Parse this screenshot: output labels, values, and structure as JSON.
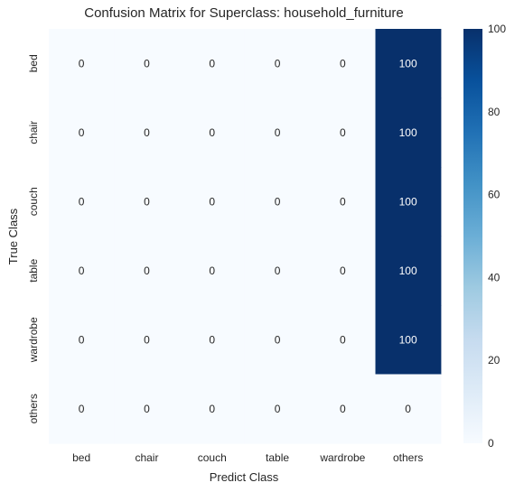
{
  "chart_data": {
    "type": "heatmap",
    "title": "Confusion Matrix for Superclass: household_furniture",
    "xlabel": "Predict Class",
    "ylabel": "True Class",
    "x_categories": [
      "bed",
      "chair",
      "couch",
      "table",
      "wardrobe",
      "others"
    ],
    "y_categories": [
      "bed",
      "chair",
      "couch",
      "table",
      "wardrobe",
      "others"
    ],
    "values": [
      [
        0,
        0,
        0,
        0,
        0,
        100
      ],
      [
        0,
        0,
        0,
        0,
        0,
        100
      ],
      [
        0,
        0,
        0,
        0,
        0,
        100
      ],
      [
        0,
        0,
        0,
        0,
        0,
        100
      ],
      [
        0,
        0,
        0,
        0,
        0,
        100
      ],
      [
        0,
        0,
        0,
        0,
        0,
        0
      ]
    ],
    "colormap": "Blues",
    "color_low": "#f7fbff",
    "color_high": "#08306b",
    "colorbar": {
      "range": [
        0,
        100
      ],
      "ticks": [
        0,
        20,
        40,
        60,
        80,
        100
      ]
    },
    "grid": false
  }
}
